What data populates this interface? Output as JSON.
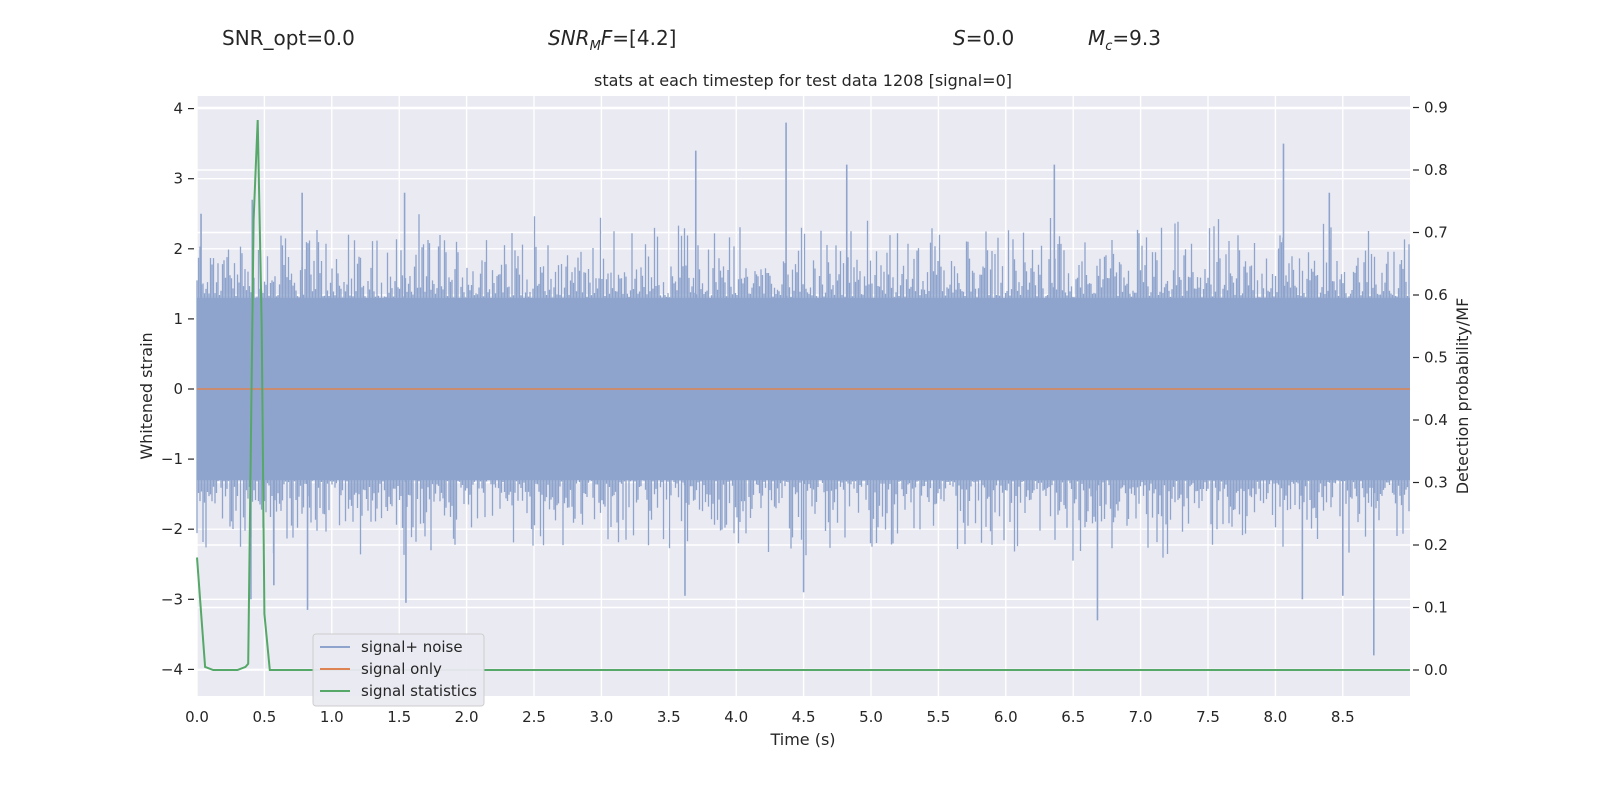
{
  "header": {
    "snr_opt": "SNR_opt=0.0",
    "snr_mf_value": "=[4.2]",
    "s_value": "=0.0",
    "mc_value": "=9.3"
  },
  "chart_data": {
    "type": "line",
    "title": "stats at each timestep for test data 1208 [signal=0]",
    "xlabel": "Time (s)",
    "ylabel": "Whitened strain",
    "y2label": "Detection probability/MF",
    "xlim": [
      0.0,
      9.0
    ],
    "ylim": [
      -4.4,
      4.2
    ],
    "y2lim": [
      -0.04,
      0.92
    ],
    "xticks": [
      0.0,
      0.5,
      1.0,
      1.5,
      2.0,
      2.5,
      3.0,
      3.5,
      4.0,
      4.5,
      5.0,
      5.5,
      6.0,
      6.5,
      7.0,
      7.5,
      8.0,
      8.5
    ],
    "xtick_labels": [
      "0.0",
      "0.5",
      "1.0",
      "1.5",
      "2.0",
      "2.5",
      "3.0",
      "3.5",
      "4.0",
      "4.5",
      "5.0",
      "5.5",
      "6.0",
      "6.5",
      "7.0",
      "7.5",
      "8.0",
      "8.5"
    ],
    "yticks": [
      -4,
      -3,
      -2,
      -1,
      0,
      1,
      2,
      3,
      4
    ],
    "ytick_labels": [
      "−4",
      "−3",
      "−2",
      "−1",
      "0",
      "1",
      "2",
      "3",
      "4"
    ],
    "y2ticks": [
      0.0,
      0.1,
      0.2,
      0.3,
      0.4,
      0.5,
      0.6,
      0.7,
      0.8,
      0.9
    ],
    "y2tick_labels": [
      "0.0",
      "0.1",
      "0.2",
      "0.3",
      "0.4",
      "0.5",
      "0.6",
      "0.7",
      "0.8",
      "0.9"
    ],
    "grid": true,
    "legend": {
      "placement": "lower-left",
      "entries": [
        "signal+ noise",
        "signal only",
        "signal statistics"
      ]
    },
    "colors": {
      "signal_noise": "#8fa4cc",
      "signal_only": "#dd8452",
      "signal_stats": "#55a868",
      "background": "#eaeaf2",
      "grid": "#ffffff"
    },
    "series": [
      {
        "name": "signal+ noise",
        "axis": "left",
        "note_shape": "dense noise band, roughly within ±1.3 with spikes to about ±3",
        "peaks_upper": [
          [
            0.03,
            2.5
          ],
          [
            0.41,
            2.7
          ],
          [
            0.78,
            2.8
          ],
          [
            1.54,
            2.8
          ],
          [
            3.7,
            3.4
          ],
          [
            4.37,
            3.8
          ],
          [
            4.82,
            3.2
          ],
          [
            6.36,
            3.2
          ],
          [
            8.06,
            3.5
          ],
          [
            8.4,
            2.8
          ]
        ],
        "peaks_lower": [
          [
            0.4,
            -3.0
          ],
          [
            0.57,
            -2.8
          ],
          [
            0.82,
            -3.15
          ],
          [
            1.55,
            -3.05
          ],
          [
            3.62,
            -2.95
          ],
          [
            4.5,
            -2.9
          ],
          [
            6.68,
            -3.3
          ],
          [
            8.2,
            -3.0
          ],
          [
            8.5,
            -2.95
          ],
          [
            8.73,
            -3.8
          ]
        ]
      },
      {
        "name": "signal only",
        "axis": "left",
        "x": [
          0.0,
          9.0
        ],
        "y": [
          0.0,
          0.0
        ]
      },
      {
        "name": "signal statistics",
        "axis": "right",
        "x": [
          0.0,
          0.06,
          0.12,
          0.18,
          0.24,
          0.3,
          0.36,
          0.38,
          0.42,
          0.45,
          0.48,
          0.5,
          0.54,
          0.6,
          1.0,
          2.0,
          3.0,
          4.0,
          5.0,
          6.0,
          7.0,
          8.0,
          9.0
        ],
        "y": [
          0.18,
          0.005,
          0.0,
          0.0,
          0.0,
          0.0,
          0.005,
          0.01,
          0.72,
          0.88,
          0.55,
          0.09,
          0.0,
          0.0,
          0.0,
          0.0,
          0.0,
          0.0,
          0.0,
          0.0,
          0.0,
          0.0,
          0.0
        ]
      }
    ]
  }
}
